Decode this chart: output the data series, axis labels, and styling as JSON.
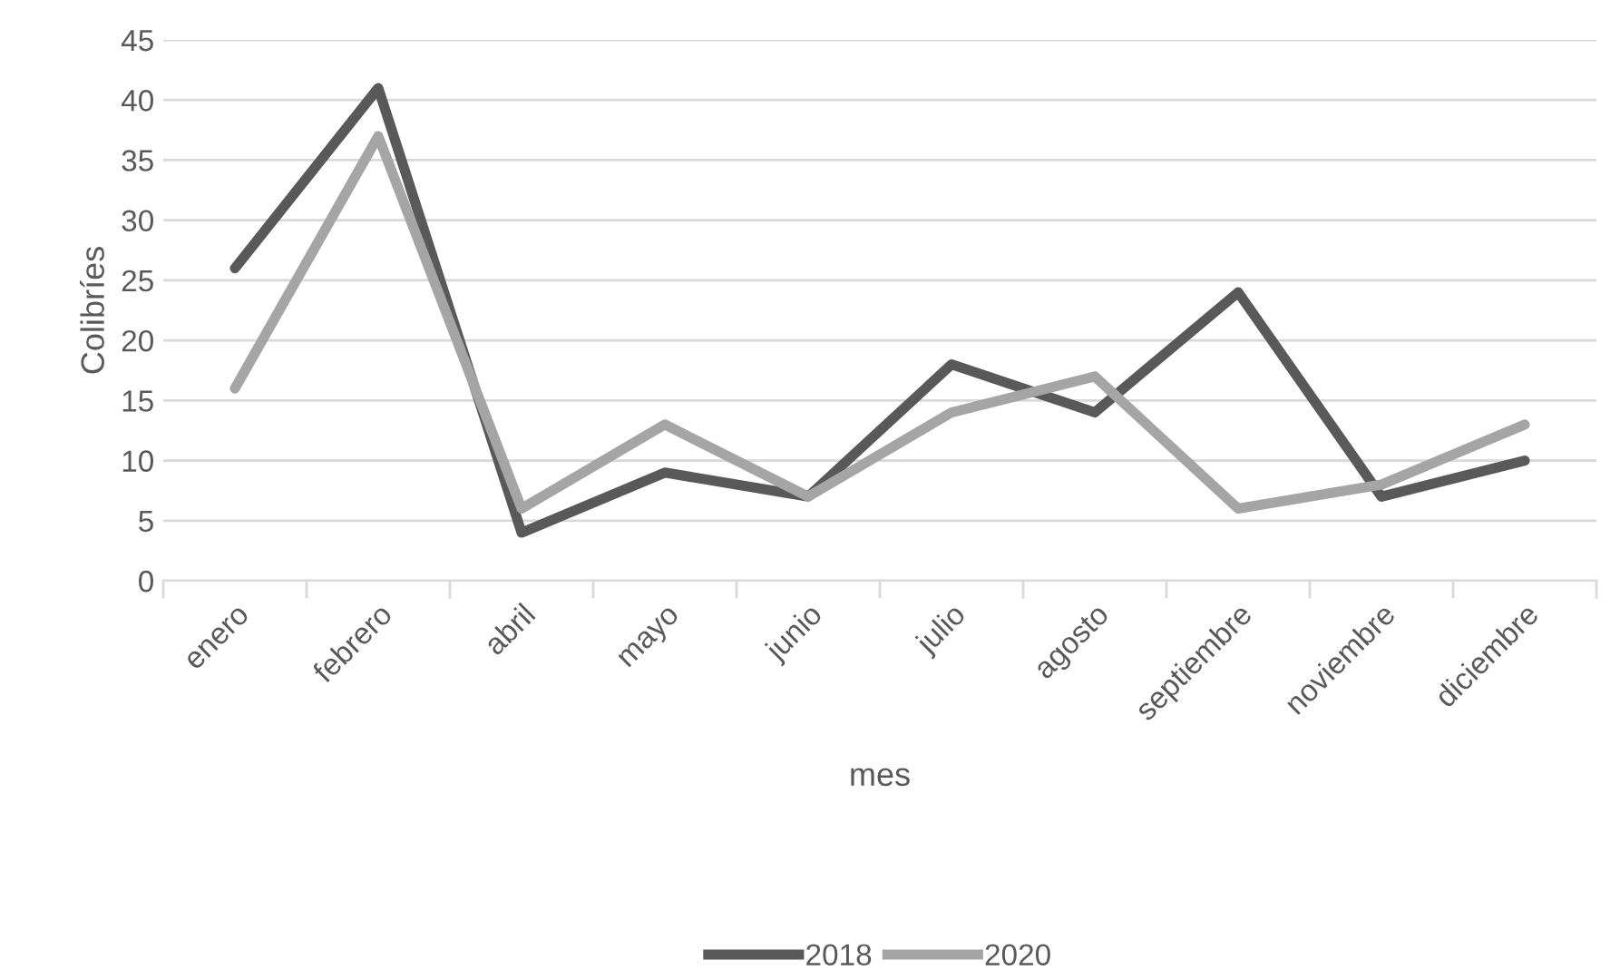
{
  "chart_data": {
    "type": "line",
    "xlabel": "mes",
    "ylabel": "Colibríes",
    "categories": [
      "enero",
      "febrero",
      "abril",
      "mayo",
      "junio",
      "julio",
      "agosto",
      "septiembre",
      "noviembre",
      "diciembre"
    ],
    "series": [
      {
        "name": "2018",
        "color": "#595959",
        "values": [
          26,
          41,
          4,
          9,
          7,
          18,
          14,
          24,
          7,
          10
        ]
      },
      {
        "name": "2020",
        "color": "#a5a5a5",
        "values": [
          16,
          37,
          6,
          13,
          7,
          14,
          17,
          6,
          8,
          13
        ]
      }
    ],
    "ylim": [
      0,
      45
    ],
    "yticks": [
      0,
      5,
      10,
      15,
      20,
      25,
      30,
      35,
      40,
      45
    ],
    "grid": "y",
    "legend": "bottom",
    "marker": "none",
    "line_style": "solid"
  }
}
